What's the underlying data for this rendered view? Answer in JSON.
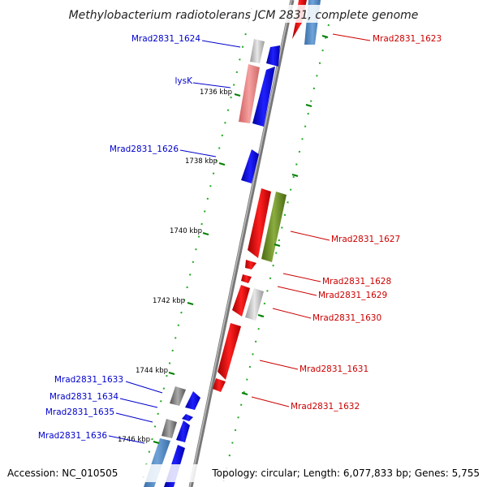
{
  "title": "Methylobacterium radiotolerans JCM 2831, complete genome",
  "accession": "Accession: NC_010505",
  "topology": "Topology: circular; Length: 6,077,833 bp; Genes: 5,755",
  "colors": {
    "backbone": "#8c8c8c",
    "forward_gene": "#0000ff",
    "reverse_gene": "#ff0000",
    "forward_label": "#0000cc",
    "reverse_label": "#cc0000",
    "tick": "#008000",
    "light_red": "#f08080",
    "light_blue": "#5a8fc8",
    "olive": "#6b8e23",
    "grey": "#9a9a9a",
    "light_grey": "#c8c8c8"
  },
  "kbp_ticks": [
    "1736 kbp",
    "1738 kbp",
    "1740 kbp",
    "1742 kbp",
    "1744 kbp",
    "1746 kbp"
  ],
  "forward_labels": [
    "Mrad2831_1624",
    "lysK",
    "Mrad2831_1626",
    "Mrad2831_1633",
    "Mrad2831_1634",
    "Mrad2831_1635",
    "Mrad2831_1636"
  ],
  "reverse_labels": [
    "Mrad2831_1623",
    "Mrad2831_1627",
    "Mrad2831_1628",
    "Mrad2831_1629",
    "Mrad2831_1630",
    "Mrad2831_1631",
    "Mrad2831_1632"
  ]
}
